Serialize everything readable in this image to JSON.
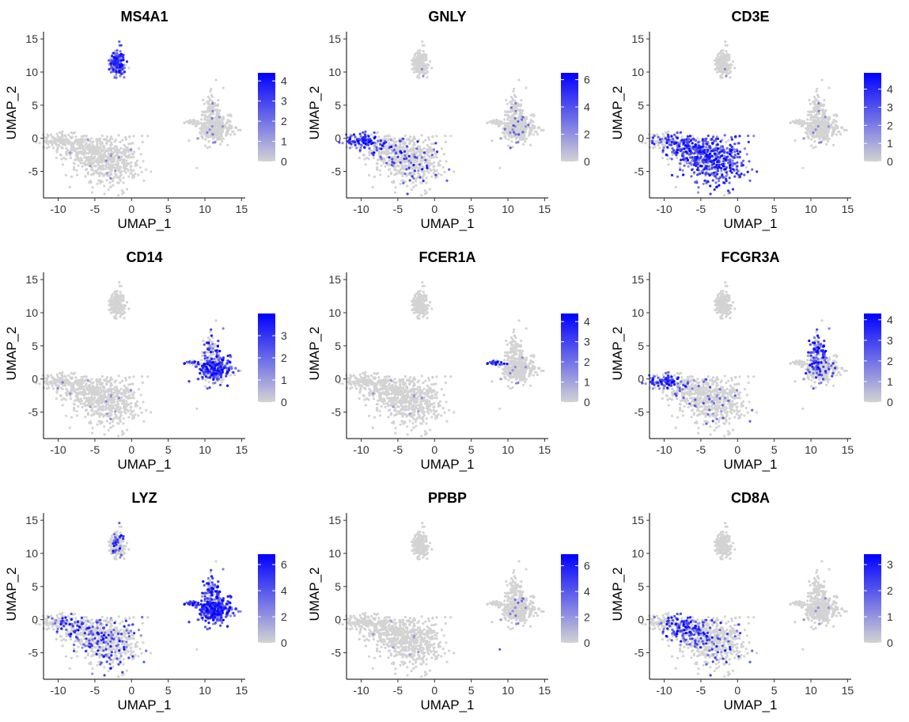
{
  "figure": {
    "type": "feature-plot-grid",
    "rows": 3,
    "cols": 3
  },
  "colors": {
    "low": "#d3d3d3",
    "high": "#0000ff",
    "axis": "#000000",
    "text": "#333333"
  },
  "chart_data": [
    {
      "type": "scatter",
      "title": "MS4A1",
      "xlabel": "UMAP_1",
      "ylabel": "UMAP_2",
      "xlim": [
        -12,
        15.5
      ],
      "ylim": [
        -9,
        15.5
      ],
      "xticks": [
        -10,
        -5,
        0,
        5,
        10,
        15
      ],
      "yticks": [
        -5,
        0,
        5,
        10,
        15
      ],
      "legend": {
        "max": 4.4,
        "ticks": [
          0,
          1,
          2,
          3,
          4
        ]
      },
      "expression": {
        "bcell": 0.85,
        "nk": 0.02,
        "tcell": 0.03,
        "cd8": 0.02,
        "mono_top": 0.04,
        "mono_main": 0.04,
        "mono_left": 0.02,
        "outlier": 0
      }
    },
    {
      "type": "scatter",
      "title": "GNLY",
      "xlabel": "UMAP_1",
      "ylabel": "UMAP_2",
      "xlim": [
        -12,
        15.5
      ],
      "ylim": [
        -9,
        15.5
      ],
      "xticks": [
        -10,
        -5,
        0,
        5,
        10,
        15
      ],
      "yticks": [
        -5,
        0,
        5,
        10,
        15
      ],
      "legend": {
        "max": 6.5,
        "ticks": [
          0,
          2,
          4,
          6
        ]
      },
      "expression": {
        "bcell": 0.05,
        "nk": 0.85,
        "tcell": 0.12,
        "cd8": 0.22,
        "mono_top": 0.07,
        "mono_main": 0.07,
        "mono_left": 0.03,
        "outlier": 0
      }
    },
    {
      "type": "scatter",
      "title": "CD3E",
      "xlabel": "UMAP_1",
      "ylabel": "UMAP_2",
      "xlim": [
        -12,
        15.5
      ],
      "ylim": [
        -9,
        15.5
      ],
      "xticks": [
        -10,
        -5,
        0,
        5,
        10,
        15
      ],
      "yticks": [
        -5,
        0,
        5,
        10,
        15
      ],
      "legend": {
        "max": 4.9,
        "ticks": [
          0,
          1,
          2,
          3,
          4
        ]
      },
      "expression": {
        "bcell": 0.05,
        "nk": 0.25,
        "tcell": 0.8,
        "cd8": 0.75,
        "mono_top": 0.03,
        "mono_main": 0.03,
        "mono_left": 0.02,
        "outlier": 0
      }
    },
    {
      "type": "scatter",
      "title": "CD14",
      "xlabel": "UMAP_1",
      "ylabel": "UMAP_2",
      "xlim": [
        -12,
        15.5
      ],
      "ylim": [
        -9,
        15.5
      ],
      "xticks": [
        -10,
        -5,
        0,
        5,
        10,
        15
      ],
      "yticks": [
        -5,
        0,
        5,
        10,
        15
      ],
      "legend": {
        "max": 4.0,
        "ticks": [
          0,
          1,
          2,
          3
        ]
      },
      "expression": {
        "bcell": 0.02,
        "nk": 0.03,
        "tcell": 0.03,
        "cd8": 0.02,
        "mono_top": 0.35,
        "mono_main": 0.6,
        "mono_left": 0.4,
        "outlier": 0
      }
    },
    {
      "type": "scatter",
      "title": "FCER1A",
      "xlabel": "UMAP_1",
      "ylabel": "UMAP_2",
      "xlim": [
        -12,
        15.5
      ],
      "ylim": [
        -9,
        15.5
      ],
      "xticks": [
        -10,
        -5,
        0,
        5,
        10,
        15
      ],
      "yticks": [
        -5,
        0,
        5,
        10,
        15
      ],
      "legend": {
        "max": 4.4,
        "ticks": [
          0,
          1,
          2,
          3,
          4
        ]
      },
      "expression": {
        "bcell": 0.01,
        "nk": 0.01,
        "tcell": 0.02,
        "cd8": 0.01,
        "mono_top": 0.02,
        "mono_main": 0.03,
        "mono_left": 0.85,
        "outlier": 0
      }
    },
    {
      "type": "scatter",
      "title": "FCGR3A",
      "xlabel": "UMAP_1",
      "ylabel": "UMAP_2",
      "xlim": [
        -12,
        15.5
      ],
      "ylim": [
        -9,
        15.5
      ],
      "xticks": [
        -10,
        -5,
        0,
        5,
        10,
        15
      ],
      "yticks": [
        -5,
        0,
        5,
        10,
        15
      ],
      "legend": {
        "max": 4.3,
        "ticks": [
          0,
          1,
          2,
          3,
          4
        ]
      },
      "expression": {
        "bcell": 0.02,
        "nk": 0.75,
        "tcell": 0.08,
        "cd8": 0.08,
        "mono_top": 0.85,
        "mono_main": 0.12,
        "mono_left": 0.05,
        "outlier": 0
      }
    },
    {
      "type": "scatter",
      "title": "LYZ",
      "xlabel": "UMAP_1",
      "ylabel": "UMAP_2",
      "xlim": [
        -12,
        15.5
      ],
      "ylim": [
        -9,
        15.5
      ],
      "xticks": [
        -10,
        -5,
        0,
        5,
        10,
        15
      ],
      "yticks": [
        -5,
        0,
        5,
        10,
        15
      ],
      "legend": {
        "max": 6.8,
        "ticks": [
          0,
          2,
          4,
          6
        ]
      },
      "expression": {
        "bcell": 0.2,
        "nk": 0.2,
        "tcell": 0.25,
        "cd8": 0.25,
        "mono_top": 0.85,
        "mono_main": 0.95,
        "mono_left": 0.9,
        "outlier": 0.5
      }
    },
    {
      "type": "scatter",
      "title": "PPBP",
      "xlabel": "UMAP_1",
      "ylabel": "UMAP_2",
      "xlim": [
        -12,
        15.5
      ],
      "ylim": [
        -9,
        15.5
      ],
      "xticks": [
        -10,
        -5,
        0,
        5,
        10,
        15
      ],
      "yticks": [
        -5,
        0,
        5,
        10,
        15
      ],
      "legend": {
        "max": 6.9,
        "ticks": [
          0,
          2,
          4,
          6
        ]
      },
      "expression": {
        "bcell": 0.01,
        "nk": 0.01,
        "tcell": 0.01,
        "cd8": 0.01,
        "mono_top": 0.02,
        "mono_main": 0.05,
        "mono_left": 0.02,
        "outlier": 1.0
      }
    },
    {
      "type": "scatter",
      "title": "CD8A",
      "xlabel": "UMAP_1",
      "ylabel": "UMAP_2",
      "xlim": [
        -12,
        15.5
      ],
      "ylim": [
        -9,
        15.5
      ],
      "xticks": [
        -10,
        -5,
        0,
        5,
        10,
        15
      ],
      "yticks": [
        -5,
        0,
        5,
        10,
        15
      ],
      "legend": {
        "max": 3.4,
        "ticks": [
          0,
          1,
          2,
          3
        ]
      },
      "expression": {
        "bcell": 0.02,
        "nk": 0.15,
        "tcell": 0.12,
        "cd8": 0.75,
        "mono_top": 0.02,
        "mono_main": 0.02,
        "mono_left": 0.02,
        "outlier": 0
      }
    }
  ]
}
